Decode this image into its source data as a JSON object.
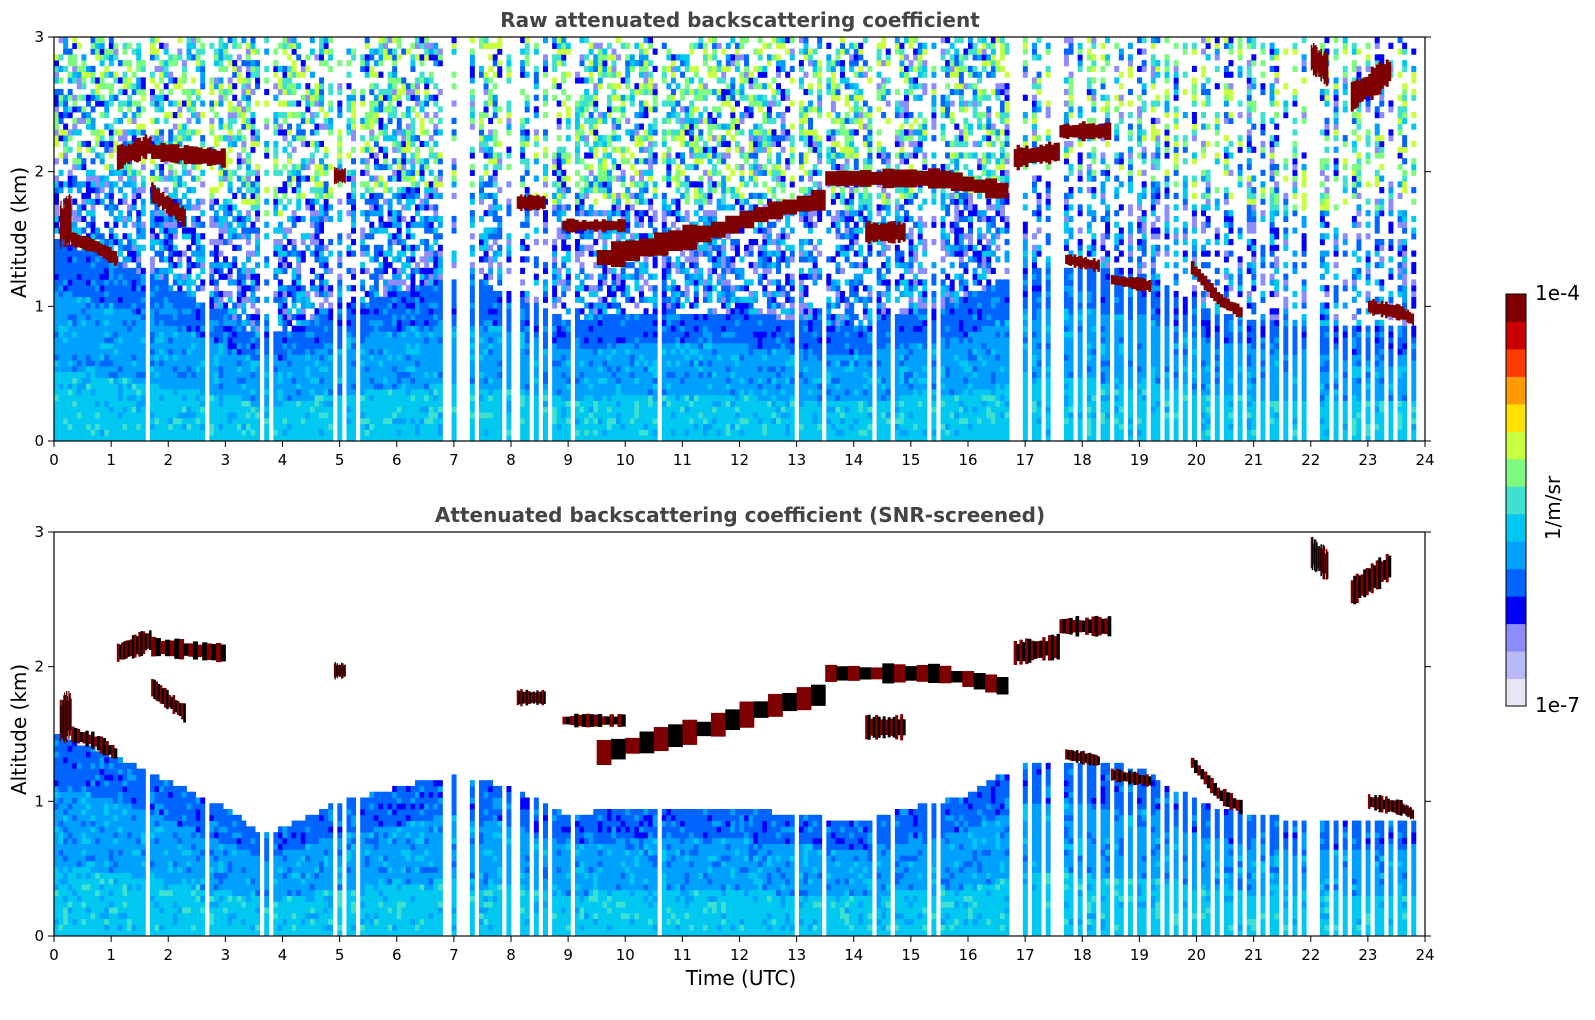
{
  "colors": {
    "colormap": [
      "#e6e6f5",
      "#b8b8f5",
      "#8c8cfa",
      "#0000ff",
      "#0064ff",
      "#00a0ff",
      "#00c8f0",
      "#40e0d0",
      "#7ffa80",
      "#c8ff40",
      "#ffe000",
      "#ff9a00",
      "#ff3c00",
      "#c80000",
      "#7f0000"
    ],
    "cloud": "#7f0000",
    "cloud_dark": "#000000"
  },
  "colorbar": {
    "label": "1/m/sr",
    "max_label": "1e-4",
    "min_label": "1e-7",
    "scale": "log"
  },
  "chart_data": [
    {
      "type": "heatmap",
      "title": "Raw attenuated backscattering coefficient",
      "xlabel": "",
      "ylabel": "Altitude (km)",
      "xlim": [
        0,
        24
      ],
      "ylim": [
        0,
        3
      ],
      "xticks": [
        "0",
        "1",
        "2",
        "3",
        "4",
        "5",
        "6",
        "7",
        "8",
        "9",
        "10",
        "11",
        "12",
        "13",
        "14",
        "15",
        "16",
        "17",
        "18",
        "19",
        "20",
        "21",
        "22",
        "23",
        "24"
      ],
      "yticks": [
        "0",
        "1",
        "2",
        "3"
      ],
      "data_end_hour": 23.85,
      "screened": false,
      "boundary_layer_top_km": [
        [
          0,
          1.5
        ],
        [
          1,
          1.35
        ],
        [
          2,
          1.15
        ],
        [
          3,
          0.95
        ],
        [
          3.7,
          0.75
        ],
        [
          4.5,
          0.9
        ],
        [
          5,
          1.0
        ],
        [
          6,
          1.1
        ],
        [
          7,
          1.2
        ],
        [
          8,
          1.1
        ],
        [
          9,
          0.9
        ],
        [
          10,
          0.95
        ],
        [
          11,
          0.95
        ],
        [
          12,
          0.95
        ],
        [
          13,
          0.9
        ],
        [
          14,
          0.85
        ],
        [
          15,
          0.95
        ],
        [
          16,
          1.05
        ],
        [
          17,
          1.3
        ],
        [
          18,
          1.3
        ],
        [
          19,
          1.25
        ],
        [
          20,
          1.0
        ],
        [
          21,
          0.9
        ],
        [
          22,
          0.85
        ],
        [
          23,
          0.85
        ],
        [
          24,
          0.85
        ]
      ],
      "cloud_layers": [
        {
          "t": [
            0.1,
            0.3
          ],
          "alt_km": [
            [
              0.1,
              1.6
            ],
            [
              0.3,
              1.65
            ]
          ],
          "thickness_km": 0.3
        },
        {
          "t": [
            0.3,
            1.1
          ],
          "alt_km": [
            [
              0.3,
              1.5
            ],
            [
              0.7,
              1.45
            ],
            [
              1.1,
              1.35
            ]
          ],
          "thickness_km": 0.1
        },
        {
          "t": [
            1.1,
            1.7
          ],
          "alt_km": [
            [
              1.1,
              2.1
            ],
            [
              1.7,
              2.2
            ]
          ],
          "thickness_km": 0.15
        },
        {
          "t": [
            1.7,
            3.0
          ],
          "alt_km": [
            [
              1.7,
              2.15
            ],
            [
              3.0,
              2.1
            ]
          ],
          "thickness_km": 0.12
        },
        {
          "t": [
            1.7,
            2.3
          ],
          "alt_km": [
            [
              1.7,
              1.85
            ],
            [
              2.3,
              1.65
            ]
          ],
          "thickness_km": 0.12
        },
        {
          "t": [
            4.9,
            5.1
          ],
          "alt_km": [
            [
              4.9,
              1.97
            ],
            [
              5.1,
              1.97
            ]
          ],
          "thickness_km": 0.1
        },
        {
          "t": [
            8.1,
            8.6
          ],
          "alt_km": [
            [
              8.1,
              1.77
            ],
            [
              8.6,
              1.77
            ]
          ],
          "thickness_km": 0.1
        },
        {
          "t": [
            8.9,
            10.0
          ],
          "alt_km": [
            [
              8.9,
              1.6
            ],
            [
              10.0,
              1.6
            ]
          ],
          "thickness_km": 0.08
        },
        {
          "t": [
            9.5,
            13.5
          ],
          "alt_km": [
            [
              9.5,
              1.35
            ],
            [
              10.5,
              1.45
            ],
            [
              11.5,
              1.55
            ],
            [
              12.5,
              1.7
            ],
            [
              13.5,
              1.8
            ]
          ],
          "thickness_km": 0.15
        },
        {
          "t": [
            13.5,
            16.7
          ],
          "alt_km": [
            [
              13.5,
              1.95
            ],
            [
              14.5,
              1.95
            ],
            [
              15.5,
              1.95
            ],
            [
              16.7,
              1.85
            ]
          ],
          "thickness_km": 0.12
        },
        {
          "t": [
            14.2,
            14.9
          ],
          "alt_km": [
            [
              14.2,
              1.55
            ],
            [
              14.9,
              1.55
            ]
          ],
          "thickness_km": 0.15
        },
        {
          "t": [
            16.8,
            17.6
          ],
          "alt_km": [
            [
              16.8,
              2.1
            ],
            [
              17.6,
              2.15
            ]
          ],
          "thickness_km": 0.15
        },
        {
          "t": [
            17.6,
            18.5
          ],
          "alt_km": [
            [
              17.6,
              2.3
            ],
            [
              18.5,
              2.3
            ]
          ],
          "thickness_km": 0.12
        },
        {
          "t": [
            17.7,
            18.3
          ],
          "alt_km": [
            [
              17.7,
              1.35
            ],
            [
              18.3,
              1.3
            ]
          ],
          "thickness_km": 0.08
        },
        {
          "t": [
            18.5,
            19.2
          ],
          "alt_km": [
            [
              18.5,
              1.2
            ],
            [
              19.2,
              1.15
            ]
          ],
          "thickness_km": 0.08
        },
        {
          "t": [
            19.9,
            20.8
          ],
          "alt_km": [
            [
              19.9,
              1.3
            ],
            [
              20.4,
              1.05
            ],
            [
              20.8,
              0.95
            ]
          ],
          "thickness_km": 0.1
        },
        {
          "t": [
            22.0,
            22.3
          ],
          "alt_km": [
            [
              22.0,
              2.85
            ],
            [
              22.3,
              2.75
            ]
          ],
          "thickness_km": 0.2
        },
        {
          "t": [
            22.7,
            23.4
          ],
          "alt_km": [
            [
              22.7,
              2.55
            ],
            [
              23.4,
              2.75
            ]
          ],
          "thickness_km": 0.2
        },
        {
          "t": [
            23.0,
            23.6
          ],
          "alt_km": [
            [
              23.0,
              1.0
            ],
            [
              23.6,
              0.95
            ]
          ],
          "thickness_km": 0.1
        },
        {
          "t": [
            23.6,
            23.8
          ],
          "alt_km": [
            [
              23.6,
              0.95
            ],
            [
              23.8,
              0.9
            ]
          ],
          "thickness_km": 0.08
        }
      ],
      "data_gaps_hours": [
        1.65,
        2.65,
        3.65,
        3.8,
        4.9,
        4.95,
        5.1,
        5.3,
        6.85,
        6.9,
        7.05,
        7.1,
        7.15,
        7.25,
        7.4,
        7.9,
        8.05,
        8.15,
        8.35,
        8.55,
        8.65,
        9.05,
        10.6,
        13.0,
        13.5,
        14.4,
        14.65,
        15.35,
        15.45,
        16.8,
        16.95,
        17.1,
        17.3,
        17.45,
        17.6,
        17.85,
        18.05,
        18.25,
        18.5,
        18.75,
        18.95,
        19.15,
        19.4,
        19.55,
        19.7,
        19.85,
        20.05,
        20.25,
        20.45,
        20.65,
        20.85,
        21.05,
        21.25,
        21.45,
        21.6,
        21.8,
        22.0,
        22.15,
        22.35,
        22.55,
        22.7,
        22.9,
        23.1,
        23.3,
        23.5,
        23.7
      ]
    },
    {
      "type": "heatmap",
      "title": "Attenuated backscattering coefficient (SNR-screened)",
      "xlabel": "Time (UTC)",
      "ylabel": "Altitude (km)",
      "xlim": [
        0,
        24
      ],
      "ylim": [
        0,
        3
      ],
      "xticks": [
        "0",
        "1",
        "2",
        "3",
        "4",
        "5",
        "6",
        "7",
        "8",
        "9",
        "10",
        "11",
        "12",
        "13",
        "14",
        "15",
        "16",
        "17",
        "18",
        "19",
        "20",
        "21",
        "22",
        "23",
        "24"
      ],
      "yticks": [
        "0",
        "1",
        "2",
        "3"
      ],
      "data_end_hour": 23.85,
      "screened": true
    }
  ]
}
